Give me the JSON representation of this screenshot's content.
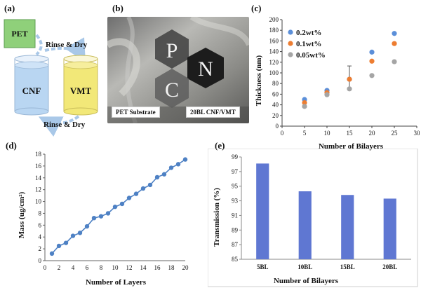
{
  "panels": {
    "a": "(a)",
    "b": "(b)",
    "c": "(c)",
    "d": "(d)",
    "e": "(e)"
  },
  "schematic": {
    "pet": "PET",
    "rinse_top": "Rinse & Dry",
    "rinse_bottom": "Rinse & Dry",
    "beaker_left": "CNF",
    "beaker_right": "VMT",
    "colors": {
      "pet": "#8fd07a",
      "cnf": "#b9d6f2",
      "vmt": "#f2e878"
    }
  },
  "photo": {
    "letters": [
      "P",
      "N",
      "C"
    ],
    "caption_left": "PET Substrate",
    "caption_right": "20BL CNF/VMT"
  },
  "chart_data": [
    {
      "type": "scatter",
      "x": [
        5,
        10,
        15,
        20,
        25
      ],
      "series": [
        {
          "name": "0.2wt%",
          "color": "#5b8fd9",
          "values": [
            50,
            67,
            88,
            139,
            174
          ]
        },
        {
          "name": "0.1wt%",
          "color": "#ed7d31",
          "values": [
            44,
            63,
            88,
            122,
            155
          ]
        },
        {
          "name": "0.05wt%",
          "color": "#a5a5a5",
          "values": [
            37,
            59,
            70,
            95,
            121
          ]
        }
      ],
      "error_bar": {
        "x": 15,
        "low": 66,
        "high": 113
      },
      "xlabel": "Number of Bilayers",
      "ylabel": "Thickness (nm)",
      "xlim": [
        0,
        30
      ],
      "ylim": [
        0,
        200
      ],
      "xticks": [
        "0",
        "5",
        "10",
        "15",
        "20",
        "25",
        "30"
      ],
      "yticks": [
        "0",
        "20",
        "40",
        "60",
        "80",
        "100",
        "120",
        "140",
        "160",
        "180",
        "200"
      ],
      "legend": "top-left"
    },
    {
      "type": "line",
      "x": [
        1,
        2,
        3,
        4,
        5,
        6,
        7,
        8,
        9,
        10,
        11,
        12,
        13,
        14,
        15,
        16,
        17,
        18,
        19,
        20
      ],
      "series": [
        {
          "color": "#4e81c4",
          "values": [
            1.2,
            2.5,
            3.0,
            4.2,
            4.7,
            5.8,
            7.2,
            7.5,
            8.0,
            9.1,
            9.6,
            10.6,
            11.3,
            12.2,
            12.8,
            14.1,
            14.6,
            15.7,
            16.3,
            17.1
          ]
        }
      ],
      "xlabel": "Number of Layers",
      "ylabel": "Mass (ug/cm²)",
      "xlim": [
        0,
        20
      ],
      "ylim": [
        0,
        18
      ],
      "xticks": [
        "0",
        "2",
        "4",
        "6",
        "8",
        "10",
        "12",
        "14",
        "16",
        "18",
        "20"
      ],
      "yticks": [
        "0",
        "2",
        "4",
        "6",
        "8",
        "10",
        "12",
        "14",
        "16",
        "18"
      ],
      "grid": false
    },
    {
      "type": "bar",
      "categories": [
        "5BL",
        "10BL",
        "15BL",
        "20BL"
      ],
      "values": [
        98.1,
        94.3,
        93.8,
        93.3
      ],
      "color": "#5f77d2",
      "xlabel": "Number of Bilayers",
      "ylabel": "Transmission (%)",
      "ylim": [
        85,
        99
      ],
      "yticks": [
        "85",
        "87",
        "89",
        "91",
        "93",
        "95",
        "97",
        "99"
      ]
    }
  ]
}
